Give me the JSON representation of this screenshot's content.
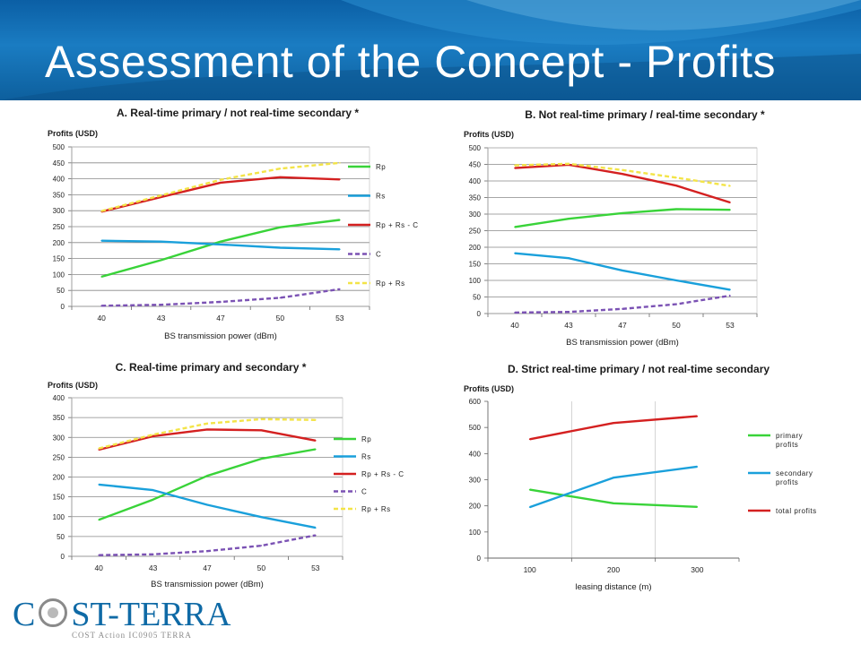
{
  "title": "Assessment of the Concept - Profits",
  "colors": {
    "header": "#0d67ad",
    "green": "#39d339",
    "blue": "#1aa0db",
    "red": "#d42020",
    "purple": "#7b52b4",
    "yellow": "#f3e448"
  },
  "logo": {
    "left": "C",
    "right": "ST-TERRA",
    "sub": "COST Action IC0905 TERRA"
  },
  "chart_data": [
    {
      "type": "line",
      "title": "A. Real-time primary / not real-time secondary *",
      "ylabel": "Profits (USD)",
      "xlabel": "BS transmission power (dBm)",
      "categories": [
        "40",
        "43",
        "47",
        "50",
        "53"
      ],
      "ylim": [
        0,
        500
      ],
      "yticks": [
        0,
        50,
        100,
        150,
        200,
        250,
        300,
        350,
        400,
        450,
        500
      ],
      "grid": true,
      "legend": "right",
      "series": [
        {
          "name": "Rp",
          "color": "green",
          "dash": false,
          "values": [
            93,
            145,
            203,
            248,
            271
          ]
        },
        {
          "name": "Rs",
          "color": "blue",
          "dash": false,
          "values": [
            206,
            203,
            194,
            184,
            179
          ]
        },
        {
          "name": "Rp + Rs - C",
          "color": "red",
          "dash": false,
          "values": [
            297,
            343,
            388,
            405,
            398
          ]
        },
        {
          "name": "C",
          "color": "purple",
          "dash": true,
          "values": [
            2,
            5,
            14,
            27,
            54
          ]
        },
        {
          "name": "Rp + Rs",
          "color": "yellow",
          "dash": true,
          "values": [
            299,
            348,
            397,
            432,
            450
          ]
        }
      ]
    },
    {
      "type": "line",
      "title": "B. Not real-time primary / real-time secondary *",
      "ylabel": "Profits (USD)",
      "xlabel": "BS transmission power (dBm)",
      "categories": [
        "40",
        "43",
        "47",
        "50",
        "53"
      ],
      "ylim": [
        0,
        500
      ],
      "yticks": [
        0,
        50,
        100,
        150,
        200,
        250,
        300,
        350,
        400,
        450,
        500
      ],
      "grid": true,
      "legend": "none",
      "series": [
        {
          "name": "",
          "color": "green",
          "dash": false,
          "values": [
            261,
            286,
            303,
            315,
            313
          ]
        },
        {
          "name": "",
          "color": "blue",
          "dash": false,
          "values": [
            182,
            167,
            130,
            100,
            72
          ]
        },
        {
          "name": "",
          "color": "red",
          "dash": false,
          "values": [
            439,
            449,
            421,
            386,
            335
          ]
        },
        {
          "name": "",
          "color": "purple",
          "dash": true,
          "values": [
            3,
            5,
            14,
            28,
            54
          ]
        },
        {
          "name": "",
          "color": "yellow",
          "dash": true,
          "values": [
            447,
            452,
            433,
            410,
            385
          ]
        }
      ]
    },
    {
      "type": "line",
      "title": "C. Real-time primary and secondary *",
      "ylabel": "Profits (USD)",
      "xlabel": "BS transmission power (dBm)",
      "categories": [
        "40",
        "43",
        "47",
        "50",
        "53"
      ],
      "ylim": [
        0,
        400
      ],
      "yticks": [
        0,
        50,
        100,
        150,
        200,
        250,
        300,
        350,
        400
      ],
      "grid": true,
      "legend": "right",
      "series": [
        {
          "name": "Rp",
          "color": "green",
          "dash": false,
          "values": [
            92,
            143,
            203,
            246,
            270
          ]
        },
        {
          "name": "Rs",
          "color": "blue",
          "dash": false,
          "values": [
            181,
            167,
            130,
            99,
            72
          ]
        },
        {
          "name": "Rp + Rs - C",
          "color": "red",
          "dash": false,
          "values": [
            269,
            303,
            320,
            318,
            292
          ]
        },
        {
          "name": "C",
          "color": "purple",
          "dash": true,
          "values": [
            3,
            5,
            13,
            27,
            53
          ]
        },
        {
          "name": "Rp + Rs",
          "color": "yellow",
          "dash": true,
          "values": [
            272,
            307,
            335,
            346,
            344
          ]
        }
      ]
    },
    {
      "type": "line",
      "title": "D. Strict real-time primary / not real-time secondary",
      "ylabel": "Profits (USD)",
      "xlabel": "leasing distance (m)",
      "categories": [
        "100",
        "200",
        "300"
      ],
      "ylim": [
        0,
        600
      ],
      "yticks": [
        0,
        100,
        200,
        300,
        400,
        500,
        600
      ],
      "grid": false,
      "legend": "right",
      "series": [
        {
          "name": "primary profits",
          "color": "green",
          "dash": false,
          "values": [
            262,
            210,
            196
          ]
        },
        {
          "name": "secondary profits",
          "color": "blue",
          "dash": false,
          "values": [
            195,
            308,
            350
          ]
        },
        {
          "name": "total profits",
          "color": "red",
          "dash": false,
          "values": [
            455,
            517,
            543
          ]
        }
      ]
    }
  ]
}
